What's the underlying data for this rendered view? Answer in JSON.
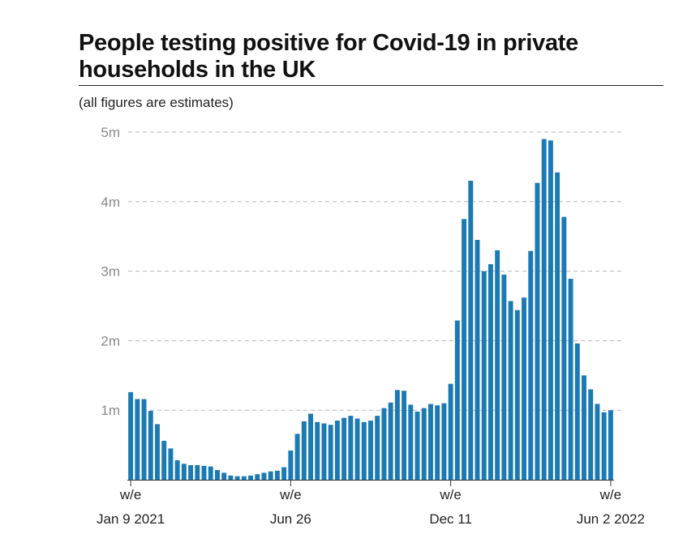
{
  "title": "People testing positive for Covid-19 in private households in the UK",
  "subtitle": "(all figures are estimates)",
  "colors": {
    "bar": "#1b7ab3",
    "grid": "#b5b5b5",
    "axis": "#333333"
  },
  "chart_data": {
    "type": "bar",
    "title": "People testing positive for Covid-19 in private households in the UK",
    "subtitle": "(all figures are estimates)",
    "ylim": [
      0,
      5000000
    ],
    "yticks": [
      {
        "value": 1000000,
        "label": "1m"
      },
      {
        "value": 2000000,
        "label": "2m"
      },
      {
        "value": 3000000,
        "label": "3m"
      },
      {
        "value": 4000000,
        "label": "4m"
      },
      {
        "value": 5000000,
        "label": "5m"
      }
    ],
    "grid": "dashed horizontal",
    "xticks": [
      {
        "index": 0,
        "line1": "w/e",
        "line2": "Jan 9 2021"
      },
      {
        "index": 24,
        "line1": "w/e",
        "line2": "Jun 26"
      },
      {
        "index": 48,
        "line1": "w/e",
        "line2": "Dec 11"
      },
      {
        "index": 72,
        "line1": "w/e",
        "line2": "Jun 2 2022"
      }
    ],
    "values": [
      1260000,
      1160000,
      1160000,
      990000,
      800000,
      560000,
      450000,
      280000,
      230000,
      210000,
      210000,
      200000,
      190000,
      140000,
      100000,
      60000,
      50000,
      50000,
      60000,
      80000,
      100000,
      120000,
      130000,
      180000,
      420000,
      660000,
      840000,
      950000,
      830000,
      810000,
      790000,
      850000,
      890000,
      920000,
      880000,
      830000,
      850000,
      920000,
      1030000,
      1110000,
      1290000,
      1280000,
      1080000,
      980000,
      1030000,
      1090000,
      1070000,
      1100000,
      1380000,
      2290000,
      3750000,
      4300000,
      3450000,
      3000000,
      3100000,
      3300000,
      2950000,
      2570000,
      2440000,
      2620000,
      3290000,
      4270000,
      4900000,
      4880000,
      4420000,
      3780000,
      2890000,
      1960000,
      1500000,
      1300000,
      1090000,
      970000,
      1000000
    ]
  }
}
